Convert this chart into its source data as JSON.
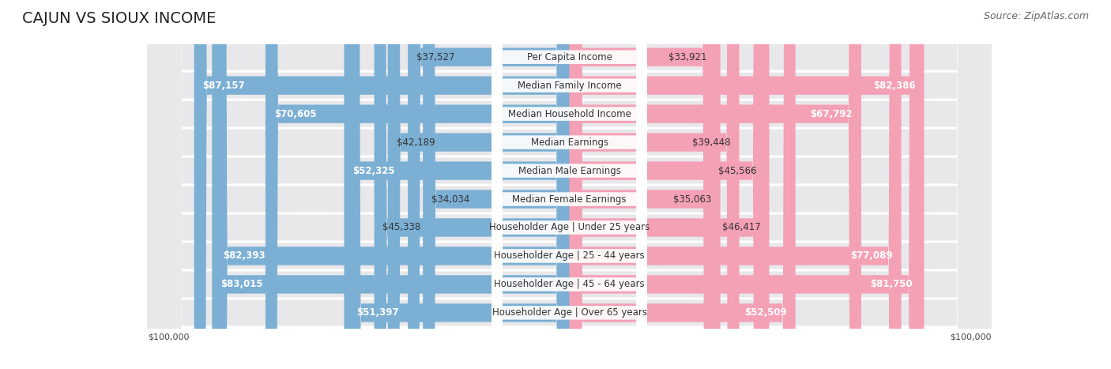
{
  "title": "CAJUN VS SIOUX INCOME",
  "source": "Source: ZipAtlas.com",
  "max_value": 100000,
  "categories": [
    "Per Capita Income",
    "Median Family Income",
    "Median Household Income",
    "Median Earnings",
    "Median Male Earnings",
    "Median Female Earnings",
    "Householder Age | Under 25 years",
    "Householder Age | 25 - 44 years",
    "Householder Age | 45 - 64 years",
    "Householder Age | Over 65 years"
  ],
  "cajun_values": [
    37527,
    87157,
    70605,
    42189,
    52325,
    34034,
    45338,
    82393,
    83015,
    51397
  ],
  "sioux_values": [
    33921,
    82386,
    67792,
    39448,
    45566,
    35063,
    46417,
    77089,
    81750,
    52509
  ],
  "cajun_color": "#7bafd4",
  "cajun_color_dark": "#5b9dc8",
  "sioux_color": "#f4a0b5",
  "sioux_color_dark": "#e87fa0",
  "cajun_label": "Cajun",
  "sioux_label": "Sioux",
  "background_color": "#ffffff",
  "row_bg_color": "#f0f0f0",
  "row_bg_alt": "#e8e8e8",
  "label_bg_color": "#ffffff",
  "title_fontsize": 14,
  "source_fontsize": 9,
  "value_fontsize": 8.5,
  "label_fontsize": 8.5,
  "axis_label_fontsize": 8
}
